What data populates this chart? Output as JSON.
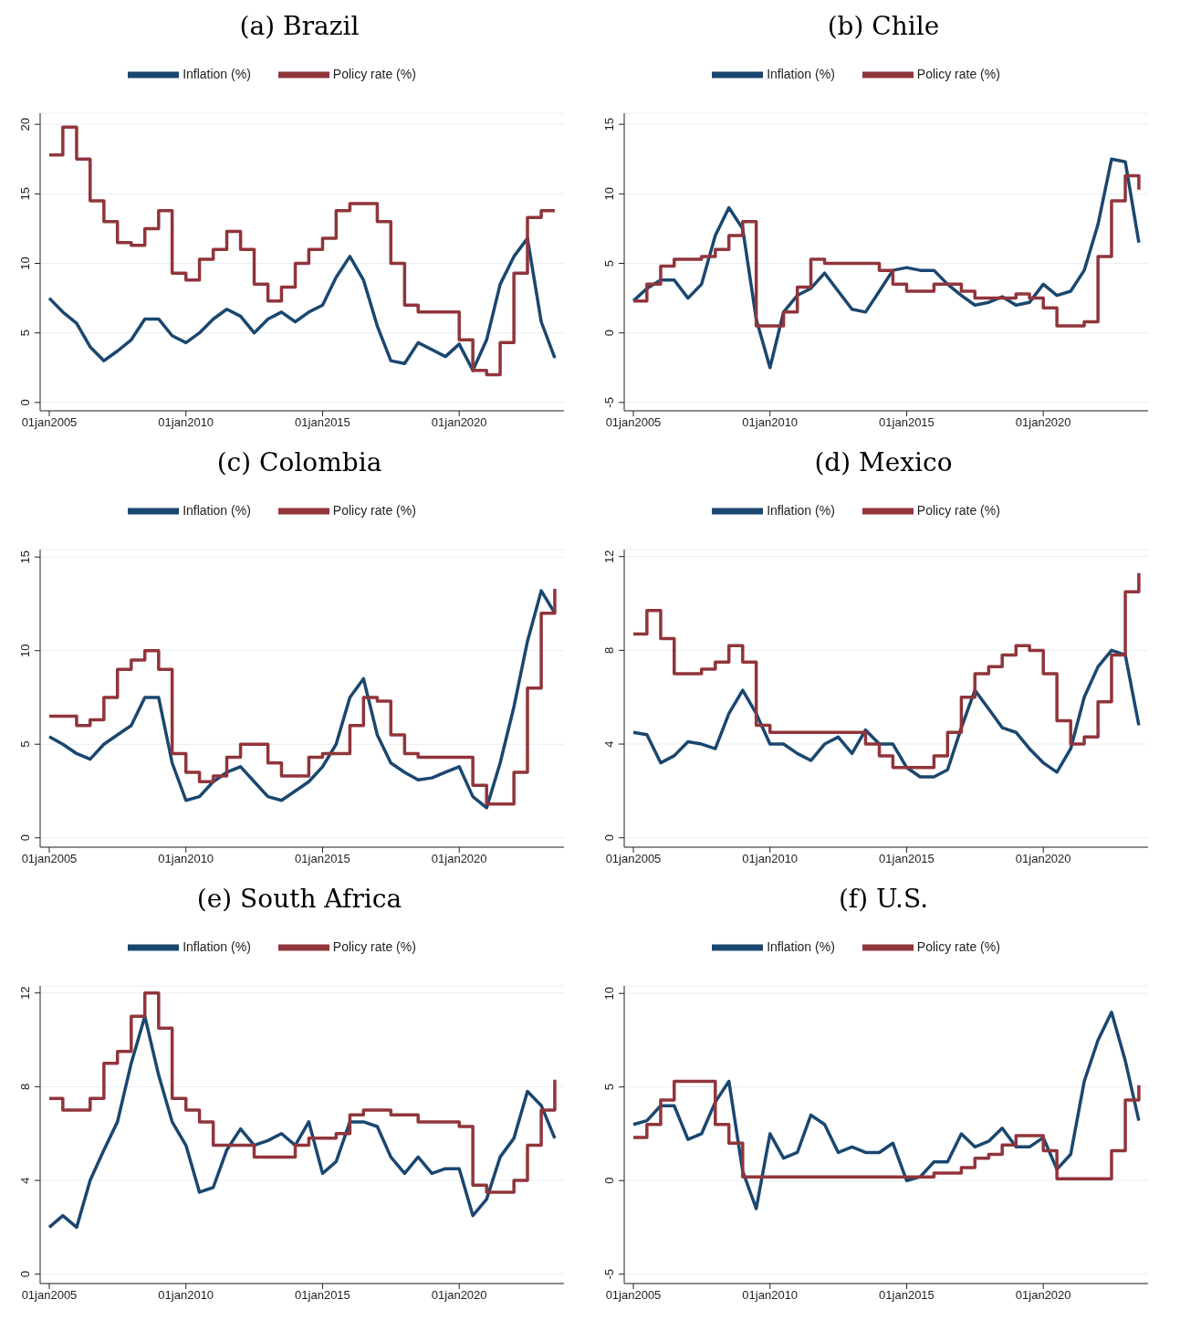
{
  "chart_data": [
    {
      "type": "line",
      "title": "(a) Brazil",
      "legend": "top",
      "grid": "y",
      "x": [
        "2005-01",
        "2005-07",
        "2006-01",
        "2006-07",
        "2007-01",
        "2007-07",
        "2008-01",
        "2008-07",
        "2009-01",
        "2009-07",
        "2010-01",
        "2010-07",
        "2011-01",
        "2011-07",
        "2012-01",
        "2012-07",
        "2013-01",
        "2013-07",
        "2014-01",
        "2014-07",
        "2015-01",
        "2015-07",
        "2016-01",
        "2016-07",
        "2017-01",
        "2017-07",
        "2018-01",
        "2018-07",
        "2019-01",
        "2019-07",
        "2020-01",
        "2020-07",
        "2021-01",
        "2021-07",
        "2022-01",
        "2022-07",
        "2023-01",
        "2023-07"
      ],
      "xlim": [
        "2004-09",
        "2023-11"
      ],
      "xticks": [
        {
          "value": "2005-01-01",
          "label": "01jan2005"
        },
        {
          "value": "2010-01-01",
          "label": "01jan2010"
        },
        {
          "value": "2015-01-01",
          "label": "01jan2015"
        },
        {
          "value": "2020-01-01",
          "label": "01jan2020"
        }
      ],
      "ylim": [
        -0.6,
        20.8
      ],
      "yticks": [
        0,
        5,
        10,
        15,
        20
      ],
      "series": [
        {
          "name": "Inflation (%)",
          "color": "#1a476f",
          "type": "line",
          "values": [
            7.5,
            6.5,
            5.7,
            4.0,
            3.0,
            3.7,
            4.5,
            6.0,
            6.0,
            4.8,
            4.3,
            5.0,
            6.0,
            6.7,
            6.2,
            5.0,
            6.0,
            6.5,
            5.8,
            6.5,
            7.0,
            9.0,
            10.5,
            8.8,
            5.5,
            3.0,
            2.8,
            4.3,
            3.8,
            3.3,
            4.2,
            2.3,
            4.5,
            8.5,
            10.5,
            11.8,
            5.8,
            3.2
          ]
        },
        {
          "name": "Policy rate (%)",
          "color": "#90353b",
          "type": "step",
          "values": [
            17.8,
            19.8,
            17.5,
            14.5,
            13.0,
            11.5,
            11.3,
            12.5,
            13.8,
            9.3,
            8.8,
            10.3,
            11.0,
            12.3,
            11.0,
            8.5,
            7.3,
            8.3,
            10.0,
            11.0,
            11.8,
            13.8,
            14.3,
            14.3,
            13.0,
            10.0,
            7.0,
            6.5,
            6.5,
            6.5,
            4.5,
            2.3,
            2.0,
            4.3,
            9.3,
            13.3,
            13.8,
            13.8
          ]
        }
      ]
    },
    {
      "type": "line",
      "title": "(b) Chile",
      "legend": "top",
      "grid": "y",
      "x": [
        "2005-01",
        "2005-07",
        "2006-01",
        "2006-07",
        "2007-01",
        "2007-07",
        "2008-01",
        "2008-07",
        "2009-01",
        "2009-07",
        "2010-01",
        "2010-07",
        "2011-01",
        "2011-07",
        "2012-01",
        "2012-07",
        "2013-01",
        "2013-07",
        "2014-01",
        "2014-07",
        "2015-01",
        "2015-07",
        "2016-01",
        "2016-07",
        "2017-01",
        "2017-07",
        "2018-01",
        "2018-07",
        "2019-01",
        "2019-07",
        "2020-01",
        "2020-07",
        "2021-01",
        "2021-07",
        "2022-01",
        "2022-07",
        "2023-01",
        "2023-07"
      ],
      "xlim": [
        "2004-09",
        "2023-11"
      ],
      "xticks": [
        {
          "value": "2005-01-01",
          "label": "01jan2005"
        },
        {
          "value": "2010-01-01",
          "label": "01jan2010"
        },
        {
          "value": "2015-01-01",
          "label": "01jan2015"
        },
        {
          "value": "2020-01-01",
          "label": "01jan2020"
        }
      ],
      "ylim": [
        -5.6,
        15.8
      ],
      "yticks": [
        -5,
        0,
        5,
        10,
        15
      ],
      "series": [
        {
          "name": "Inflation (%)",
          "color": "#1a476f",
          "type": "line",
          "values": [
            2.3,
            3.2,
            3.8,
            3.8,
            2.5,
            3.5,
            7.0,
            9.0,
            7.5,
            1.0,
            -2.5,
            1.5,
            2.7,
            3.2,
            4.3,
            3.0,
            1.7,
            1.5,
            3.0,
            4.5,
            4.7,
            4.5,
            4.5,
            3.5,
            2.7,
            2.0,
            2.2,
            2.6,
            2.0,
            2.2,
            3.5,
            2.7,
            3.0,
            4.5,
            7.8,
            12.5,
            12.3,
            6.5
          ]
        },
        {
          "name": "Policy rate (%)",
          "color": "#90353b",
          "type": "step",
          "values": [
            2.3,
            3.5,
            4.8,
            5.3,
            5.3,
            5.5,
            6.0,
            7.0,
            8.0,
            0.5,
            0.5,
            1.5,
            3.3,
            5.3,
            5.0,
            5.0,
            5.0,
            5.0,
            4.5,
            3.5,
            3.0,
            3.0,
            3.5,
            3.5,
            3.0,
            2.5,
            2.5,
            2.5,
            2.8,
            2.5,
            1.8,
            0.5,
            0.5,
            0.8,
            5.5,
            9.5,
            11.3,
            10.3
          ]
        }
      ]
    },
    {
      "type": "line",
      "title": "(c) Colombia",
      "legend": "top",
      "grid": "y",
      "x": [
        "2005-01",
        "2005-07",
        "2006-01",
        "2006-07",
        "2007-01",
        "2007-07",
        "2008-01",
        "2008-07",
        "2009-01",
        "2009-07",
        "2010-01",
        "2010-07",
        "2011-01",
        "2011-07",
        "2012-01",
        "2012-07",
        "2013-01",
        "2013-07",
        "2014-01",
        "2014-07",
        "2015-01",
        "2015-07",
        "2016-01",
        "2016-07",
        "2017-01",
        "2017-07",
        "2018-01",
        "2018-07",
        "2019-01",
        "2019-07",
        "2020-01",
        "2020-07",
        "2021-01",
        "2021-07",
        "2022-01",
        "2022-07",
        "2023-01",
        "2023-07"
      ],
      "xlim": [
        "2004-09",
        "2023-11"
      ],
      "xticks": [
        {
          "value": "2005-01-01",
          "label": "01jan2005"
        },
        {
          "value": "2010-01-01",
          "label": "01jan2010"
        },
        {
          "value": "2015-01-01",
          "label": "01jan2015"
        },
        {
          "value": "2020-01-01",
          "label": "01jan2020"
        }
      ],
      "ylim": [
        -0.5,
        15.4
      ],
      "yticks": [
        0,
        5,
        10,
        15
      ],
      "series": [
        {
          "name": "Inflation (%)",
          "color": "#1a476f",
          "type": "line",
          "values": [
            5.4,
            5.0,
            4.5,
            4.2,
            5.0,
            5.5,
            6.0,
            7.5,
            7.5,
            4.0,
            2.0,
            2.2,
            3.0,
            3.5,
            3.8,
            3.0,
            2.2,
            2.0,
            2.5,
            3.0,
            3.8,
            5.0,
            7.5,
            8.5,
            5.5,
            4.0,
            3.5,
            3.1,
            3.2,
            3.5,
            3.8,
            2.2,
            1.6,
            4.0,
            7.0,
            10.5,
            13.2,
            12.0
          ]
        },
        {
          "name": "Policy rate (%)",
          "color": "#90353b",
          "type": "step",
          "values": [
            6.5,
            6.5,
            6.0,
            6.3,
            7.5,
            9.0,
            9.5,
            10.0,
            9.0,
            4.5,
            3.5,
            3.0,
            3.3,
            4.3,
            5.0,
            5.0,
            4.0,
            3.3,
            3.3,
            4.3,
            4.5,
            4.5,
            6.0,
            7.5,
            7.3,
            5.5,
            4.5,
            4.3,
            4.3,
            4.3,
            4.3,
            2.8,
            1.8,
            1.8,
            3.5,
            8.0,
            12.0,
            13.3
          ]
        }
      ]
    },
    {
      "type": "line",
      "title": "(d) Mexico",
      "legend": "top",
      "grid": "y",
      "x": [
        "2005-01",
        "2005-07",
        "2006-01",
        "2006-07",
        "2007-01",
        "2007-07",
        "2008-01",
        "2008-07",
        "2009-01",
        "2009-07",
        "2010-01",
        "2010-07",
        "2011-01",
        "2011-07",
        "2012-01",
        "2012-07",
        "2013-01",
        "2013-07",
        "2014-01",
        "2014-07",
        "2015-01",
        "2015-07",
        "2016-01",
        "2016-07",
        "2017-01",
        "2017-07",
        "2018-01",
        "2018-07",
        "2019-01",
        "2019-07",
        "2020-01",
        "2020-07",
        "2021-01",
        "2021-07",
        "2022-01",
        "2022-07",
        "2023-01",
        "2023-07"
      ],
      "xlim": [
        "2004-09",
        "2023-11"
      ],
      "xticks": [
        {
          "value": "2005-01-01",
          "label": "01jan2005"
        },
        {
          "value": "2010-01-01",
          "label": "01jan2010"
        },
        {
          "value": "2015-01-01",
          "label": "01jan2015"
        },
        {
          "value": "2020-01-01",
          "label": "01jan2020"
        }
      ],
      "ylim": [
        -0.4,
        12.3
      ],
      "yticks": [
        0,
        4,
        8,
        12
      ],
      "series": [
        {
          "name": "Inflation (%)",
          "color": "#1a476f",
          "type": "line",
          "values": [
            4.5,
            4.4,
            3.2,
            3.5,
            4.1,
            4.0,
            3.8,
            5.3,
            6.3,
            5.3,
            4.0,
            4.0,
            3.6,
            3.3,
            4.0,
            4.3,
            3.6,
            4.6,
            4.0,
            4.0,
            3.0,
            2.6,
            2.6,
            2.9,
            4.7,
            6.3,
            5.5,
            4.7,
            4.5,
            3.8,
            3.2,
            2.8,
            3.8,
            6.0,
            7.3,
            8.0,
            7.8,
            4.8
          ]
        },
        {
          "name": "Policy rate (%)",
          "color": "#90353b",
          "type": "step",
          "values": [
            8.7,
            9.7,
            8.5,
            7.0,
            7.0,
            7.2,
            7.5,
            8.2,
            7.5,
            4.8,
            4.5,
            4.5,
            4.5,
            4.5,
            4.5,
            4.5,
            4.5,
            4.0,
            3.5,
            3.0,
            3.0,
            3.0,
            3.5,
            4.5,
            6.0,
            7.0,
            7.3,
            7.8,
            8.2,
            8.0,
            7.0,
            5.0,
            4.0,
            4.3,
            5.8,
            7.8,
            10.5,
            11.3
          ]
        }
      ]
    },
    {
      "type": "line",
      "title": "(e) South Africa",
      "legend": "top",
      "grid": "y",
      "x": [
        "2005-01",
        "2005-07",
        "2006-01",
        "2006-07",
        "2007-01",
        "2007-07",
        "2008-01",
        "2008-07",
        "2009-01",
        "2009-07",
        "2010-01",
        "2010-07",
        "2011-01",
        "2011-07",
        "2012-01",
        "2012-07",
        "2013-01",
        "2013-07",
        "2014-01",
        "2014-07",
        "2015-01",
        "2015-07",
        "2016-01",
        "2016-07",
        "2017-01",
        "2017-07",
        "2018-01",
        "2018-07",
        "2019-01",
        "2019-07",
        "2020-01",
        "2020-07",
        "2021-01",
        "2021-07",
        "2022-01",
        "2022-07",
        "2023-01",
        "2023-07"
      ],
      "xlim": [
        "2004-09",
        "2023-11"
      ],
      "xticks": [
        {
          "value": "2005-01-01",
          "label": "01jan2005"
        },
        {
          "value": "2010-01-01",
          "label": "01jan2010"
        },
        {
          "value": "2015-01-01",
          "label": "01jan2015"
        },
        {
          "value": "2020-01-01",
          "label": "01jan2020"
        }
      ],
      "ylim": [
        -0.4,
        12.3
      ],
      "yticks": [
        0,
        4,
        8,
        12
      ],
      "series": [
        {
          "name": "Inflation (%)",
          "color": "#1a476f",
          "type": "line",
          "values": [
            2.0,
            2.5,
            2.0,
            4.0,
            5.3,
            6.5,
            9.0,
            11.0,
            8.5,
            6.5,
            5.5,
            3.5,
            3.7,
            5.3,
            6.2,
            5.5,
            5.7,
            6.0,
            5.5,
            6.5,
            4.3,
            4.8,
            6.5,
            6.5,
            6.3,
            5.0,
            4.3,
            5.0,
            4.3,
            4.5,
            4.5,
            2.5,
            3.2,
            5.0,
            5.8,
            7.8,
            7.2,
            5.8
          ]
        },
        {
          "name": "Policy rate (%)",
          "color": "#90353b",
          "type": "step",
          "values": [
            7.5,
            7.0,
            7.0,
            7.5,
            9.0,
            9.5,
            11.0,
            12.0,
            10.5,
            7.5,
            7.0,
            6.5,
            5.5,
            5.5,
            5.5,
            5.0,
            5.0,
            5.0,
            5.5,
            5.8,
            5.8,
            6.0,
            6.8,
            7.0,
            7.0,
            6.8,
            6.8,
            6.5,
            6.5,
            6.5,
            6.3,
            3.8,
            3.5,
            3.5,
            4.0,
            5.5,
            7.0,
            8.3
          ]
        }
      ]
    },
    {
      "type": "line",
      "title": "(f) U.S.",
      "legend": "top",
      "grid": "y",
      "x": [
        "2005-01",
        "2005-07",
        "2006-01",
        "2006-07",
        "2007-01",
        "2007-07",
        "2008-01",
        "2008-07",
        "2009-01",
        "2009-07",
        "2010-01",
        "2010-07",
        "2011-01",
        "2011-07",
        "2012-01",
        "2012-07",
        "2013-01",
        "2013-07",
        "2014-01",
        "2014-07",
        "2015-01",
        "2015-07",
        "2016-01",
        "2016-07",
        "2017-01",
        "2017-07",
        "2018-01",
        "2018-07",
        "2019-01",
        "2019-07",
        "2020-01",
        "2020-07",
        "2021-01",
        "2021-07",
        "2022-01",
        "2022-07",
        "2023-01",
        "2023-07"
      ],
      "xlim": [
        "2004-09",
        "2023-11"
      ],
      "xticks": [
        {
          "value": "2005-01-01",
          "label": "01jan2005"
        },
        {
          "value": "2010-01-01",
          "label": "01jan2010"
        },
        {
          "value": "2015-01-01",
          "label": "01jan2015"
        },
        {
          "value": "2020-01-01",
          "label": "01jan2020"
        }
      ],
      "ylim": [
        -5.5,
        10.4
      ],
      "yticks": [
        -5,
        0,
        5,
        10
      ],
      "series": [
        {
          "name": "Inflation (%)",
          "color": "#1a476f",
          "type": "line",
          "values": [
            3.0,
            3.2,
            4.0,
            4.0,
            2.2,
            2.5,
            4.2,
            5.3,
            0.5,
            -1.5,
            2.5,
            1.2,
            1.5,
            3.5,
            3.0,
            1.5,
            1.8,
            1.5,
            1.5,
            2.0,
            0.0,
            0.2,
            1.0,
            1.0,
            2.5,
            1.8,
            2.1,
            2.8,
            1.8,
            1.8,
            2.3,
            0.6,
            1.4,
            5.3,
            7.5,
            9.0,
            6.4,
            3.2
          ]
        },
        {
          "name": "Policy rate (%)",
          "color": "#90353b",
          "type": "step",
          "values": [
            2.3,
            3.0,
            4.3,
            5.3,
            5.3,
            5.3,
            3.0,
            2.0,
            0.2,
            0.2,
            0.2,
            0.2,
            0.2,
            0.2,
            0.2,
            0.2,
            0.2,
            0.2,
            0.2,
            0.2,
            0.2,
            0.2,
            0.4,
            0.4,
            0.7,
            1.2,
            1.4,
            1.9,
            2.4,
            2.4,
            1.6,
            0.1,
            0.1,
            0.1,
            0.1,
            1.6,
            4.3,
            5.1
          ]
        }
      ]
    }
  ]
}
